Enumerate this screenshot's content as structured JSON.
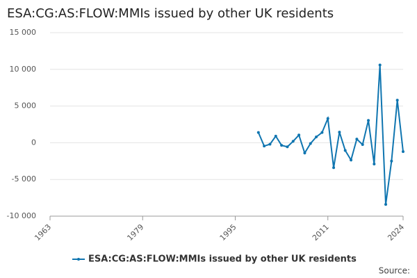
{
  "chart_data": {
    "type": "line",
    "title": "ESA:CG:AS:FLOW:MMIs issued by other UK residents",
    "x": [
      1999,
      2000,
      2001,
      2002,
      2003,
      2004,
      2005,
      2006,
      2007,
      2008,
      2009,
      2010,
      2011,
      2012,
      2013,
      2014,
      2015,
      2016,
      2017,
      2018,
      2019,
      2020,
      2021,
      2022,
      2023,
      2024
    ],
    "series": [
      {
        "name": "ESA:CG:AS:FLOW:MMIs issued by other UK residents",
        "color": "#0f75b0",
        "values": [
          1400,
          -450,
          -200,
          900,
          -350,
          -550,
          200,
          1050,
          -1400,
          -100,
          800,
          1400,
          3300,
          -3400,
          1450,
          -1050,
          -2350,
          500,
          -250,
          3050,
          -2900,
          10600,
          -8400,
          -2500,
          5800,
          -1200
        ]
      }
    ],
    "xlim": [
      1963,
      2024
    ],
    "xticks": [
      1963,
      1979,
      1995,
      2011,
      2024
    ],
    "ylim": [
      -10000,
      15000
    ],
    "yticks": [
      {
        "value": -10000,
        "label": "-10 000"
      },
      {
        "value": -5000,
        "label": "-5 000"
      },
      0,
      {
        "value": 5000,
        "label": "5 000"
      },
      {
        "value": 10000,
        "label": "10 000"
      },
      {
        "value": 15000,
        "label": "15 000"
      }
    ],
    "grid": true,
    "legend": "bottom",
    "source": "Source:"
  }
}
